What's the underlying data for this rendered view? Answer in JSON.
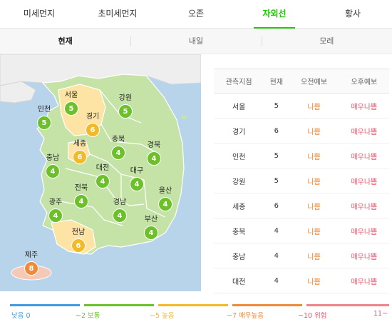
{
  "top_tabs": [
    {
      "label": "미세먼지",
      "active": false
    },
    {
      "label": "초미세먼지",
      "active": false
    },
    {
      "label": "오존",
      "active": false
    },
    {
      "label": "자외선",
      "active": true
    },
    {
      "label": "황사",
      "active": false
    }
  ],
  "sub_tabs": [
    {
      "label": "현재",
      "active": true
    },
    {
      "label": "내일",
      "active": false
    },
    {
      "label": "모레",
      "active": false
    }
  ],
  "colors": {
    "accent": "#1ec800",
    "low": "#3f9ae0",
    "normal": "#6cc12a",
    "high": "#f2b928",
    "very_high": "#ef8a3a",
    "danger": "#e8546a",
    "map_sea": "#b8d4ea"
  },
  "map": {
    "regions": [
      {
        "name": "서울",
        "value": "5",
        "level": "normal",
        "icon": "marker-circle-icon"
      },
      {
        "name": "인천",
        "value": "5",
        "level": "normal",
        "icon": "marker-circle-icon"
      },
      {
        "name": "강원",
        "value": "5",
        "level": "normal",
        "icon": "marker-circle-icon"
      },
      {
        "name": "경기",
        "value": "6",
        "level": "high",
        "icon": "marker-circle-icon"
      },
      {
        "name": "충북",
        "value": "4",
        "level": "normal",
        "icon": "marker-circle-icon"
      },
      {
        "name": "세종",
        "value": "6",
        "level": "high",
        "icon": "marker-circle-icon"
      },
      {
        "name": "경북",
        "value": "4",
        "level": "normal",
        "icon": "marker-circle-icon"
      },
      {
        "name": "충남",
        "value": "4",
        "level": "normal",
        "icon": "marker-circle-icon"
      },
      {
        "name": "대전",
        "value": "4",
        "level": "normal",
        "icon": "marker-circle-icon"
      },
      {
        "name": "대구",
        "value": "4",
        "level": "normal",
        "icon": "marker-circle-icon"
      },
      {
        "name": "전북",
        "value": "4",
        "level": "normal",
        "icon": "marker-circle-icon"
      },
      {
        "name": "울산",
        "value": "4",
        "level": "normal",
        "icon": "marker-circle-icon"
      },
      {
        "name": "광주",
        "value": "4",
        "level": "normal",
        "icon": "marker-circle-icon"
      },
      {
        "name": "경남",
        "value": "4",
        "level": "normal",
        "icon": "marker-circle-icon"
      },
      {
        "name": "부산",
        "value": "4",
        "level": "normal",
        "icon": "marker-circle-icon"
      },
      {
        "name": "전남",
        "value": "6",
        "level": "high",
        "icon": "marker-circle-icon"
      },
      {
        "name": "제주",
        "value": "8",
        "level": "very_high",
        "icon": "marker-circle-icon"
      }
    ]
  },
  "table": {
    "headers": [
      "관측지점",
      "현재",
      "오전예보",
      "오후예보"
    ],
    "rows": [
      {
        "station": "서울",
        "current": "5",
        "am": "나쁨",
        "pm": "매우나쁨"
      },
      {
        "station": "경기",
        "current": "6",
        "am": "나쁨",
        "pm": "매우나쁨"
      },
      {
        "station": "인천",
        "current": "5",
        "am": "나쁨",
        "pm": "매우나쁨"
      },
      {
        "station": "강원",
        "current": "5",
        "am": "나쁨",
        "pm": "매우나쁨"
      },
      {
        "station": "세종",
        "current": "6",
        "am": "나쁨",
        "pm": "매우나쁨"
      },
      {
        "station": "충북",
        "current": "4",
        "am": "나쁨",
        "pm": "매우나쁨"
      },
      {
        "station": "충남",
        "current": "4",
        "am": "나쁨",
        "pm": "매우나쁨"
      },
      {
        "station": "대전",
        "current": "4",
        "am": "나쁨",
        "pm": "매우나쁨"
      }
    ]
  },
  "scale": [
    {
      "label": "낮음 0",
      "color": "#3f9ae0"
    },
    {
      "label": "~2 보통",
      "color": "#6cc12a"
    },
    {
      "label": "~5 높음",
      "color": "#f2b928"
    },
    {
      "label": "~7 매우높음",
      "color": "#ef8a3a"
    },
    {
      "label": "~10 위험",
      "color": "#e8546a"
    },
    {
      "label": "11~",
      "color": "#e8546a"
    }
  ]
}
